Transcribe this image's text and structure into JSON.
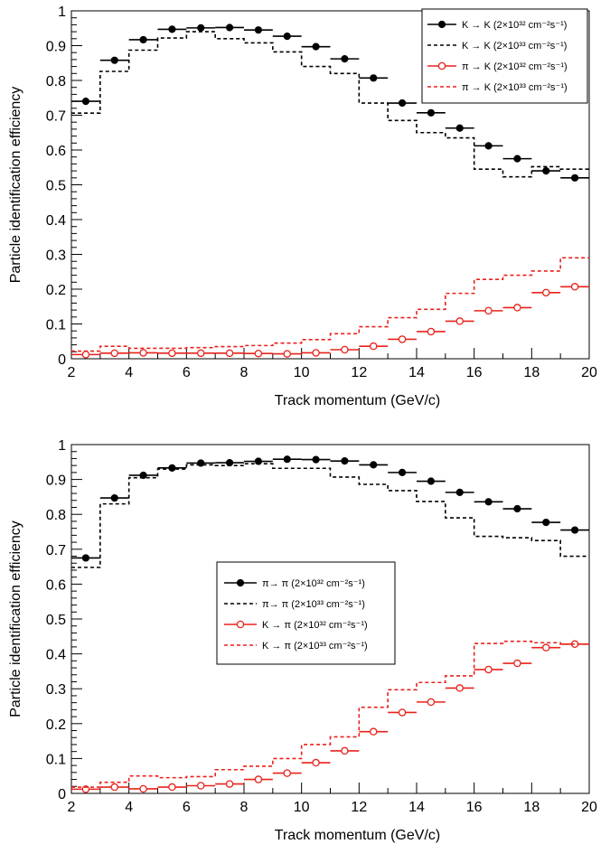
{
  "chart_data": [
    {
      "type": "line",
      "panel": "top",
      "xlabel": "Track momentum (GeV/c)",
      "ylabel": "Particle identification efficiency",
      "xlim": [
        2,
        20
      ],
      "ylim": [
        0,
        1
      ],
      "x_bin_edges": [
        2,
        3,
        4,
        5,
        6,
        7,
        8,
        9,
        10,
        11,
        12,
        13,
        14,
        15,
        16,
        17,
        18,
        19,
        20
      ],
      "x_bin_centers": [
        2.5,
        3.5,
        4.5,
        5.5,
        6.5,
        7.5,
        8.5,
        9.5,
        10.5,
        11.5,
        12.5,
        13.5,
        14.5,
        15.5,
        16.5,
        17.5,
        18.5,
        19.5
      ],
      "x_ticks": [
        2,
        4,
        6,
        8,
        10,
        12,
        14,
        16,
        18,
        20
      ],
      "y_ticks": [
        0,
        0.1,
        0.2,
        0.3,
        0.4,
        0.5,
        0.6,
        0.7,
        0.8,
        0.9,
        1
      ],
      "legend_position": "top-right",
      "series": [
        {
          "name": "K → K (2×10³² cm⁻²s⁻¹)",
          "style": "marker-filled",
          "color": "#000000",
          "values": [
            0.74,
            0.858,
            0.917,
            0.947,
            0.951,
            0.952,
            0.945,
            0.927,
            0.897,
            0.862,
            0.807,
            0.735,
            0.707,
            0.663,
            0.612,
            0.575,
            0.54,
            0.52
          ]
        },
        {
          "name": "K → K (2×10³³ cm⁻²s⁻¹)",
          "style": "step-dashed",
          "color": "#000000",
          "values": [
            0.706,
            0.826,
            0.887,
            0.922,
            0.94,
            0.92,
            0.908,
            0.882,
            0.84,
            0.82,
            0.735,
            0.685,
            0.65,
            0.635,
            0.545,
            0.523,
            0.552,
            0.545
          ]
        },
        {
          "name": "π → K (2×10³² cm⁻²s⁻¹)",
          "style": "marker-open",
          "color": "#e8221c",
          "values": [
            0.012,
            0.016,
            0.017,
            0.016,
            0.016,
            0.016,
            0.015,
            0.014,
            0.017,
            0.026,
            0.036,
            0.056,
            0.078,
            0.108,
            0.138,
            0.147,
            0.19,
            0.207
          ]
        },
        {
          "name": "π → K (2×10³³ cm⁻²s⁻¹)",
          "style": "step-dashed",
          "color": "#e8221c",
          "values": [
            0.022,
            0.036,
            0.03,
            0.03,
            0.032,
            0.035,
            0.038,
            0.045,
            0.055,
            0.072,
            0.092,
            0.118,
            0.142,
            0.188,
            0.228,
            0.24,
            0.252,
            0.29
          ]
        }
      ]
    },
    {
      "type": "line",
      "panel": "bottom",
      "xlabel": "Track momentum (GeV/c)",
      "ylabel": "Particle identification efficiency",
      "xlim": [
        2,
        20
      ],
      "ylim": [
        0,
        1
      ],
      "x_bin_edges": [
        2,
        3,
        4,
        5,
        6,
        7,
        8,
        9,
        10,
        11,
        12,
        13,
        14,
        15,
        16,
        17,
        18,
        19,
        20
      ],
      "x_bin_centers": [
        2.5,
        3.5,
        4.5,
        5.5,
        6.5,
        7.5,
        8.5,
        9.5,
        10.5,
        11.5,
        12.5,
        13.5,
        14.5,
        15.5,
        16.5,
        17.5,
        18.5,
        19.5
      ],
      "x_ticks": [
        2,
        4,
        6,
        8,
        10,
        12,
        14,
        16,
        18,
        20
      ],
      "y_ticks": [
        0,
        0.1,
        0.2,
        0.3,
        0.4,
        0.5,
        0.6,
        0.7,
        0.8,
        0.9,
        1
      ],
      "legend_position": "center-left",
      "series": [
        {
          "name": "π→ π (2×10³² cm⁻²s⁻¹)",
          "style": "marker-filled",
          "color": "#000000",
          "values": [
            0.675,
            0.847,
            0.912,
            0.933,
            0.947,
            0.948,
            0.952,
            0.958,
            0.957,
            0.953,
            0.942,
            0.92,
            0.895,
            0.863,
            0.836,
            0.816,
            0.777,
            0.755
          ]
        },
        {
          "name": "π→ π (2×10³³ cm⁻²s⁻¹)",
          "style": "step-dashed",
          "color": "#000000",
          "values": [
            0.648,
            0.83,
            0.905,
            0.93,
            0.942,
            0.94,
            0.945,
            0.932,
            0.932,
            0.907,
            0.886,
            0.868,
            0.837,
            0.79,
            0.737,
            0.733,
            0.725,
            0.68
          ]
        },
        {
          "name": "K → π (2×10³² cm⁻²s⁻¹)",
          "style": "marker-open",
          "color": "#e8221c",
          "values": [
            0.012,
            0.018,
            0.013,
            0.018,
            0.022,
            0.027,
            0.04,
            0.058,
            0.088,
            0.122,
            0.177,
            0.232,
            0.262,
            0.302,
            0.355,
            0.373,
            0.418,
            0.428
          ]
        },
        {
          "name": "K → π (2×10³³ cm⁻²s⁻¹)",
          "style": "step-dashed",
          "color": "#e8221c",
          "values": [
            0.018,
            0.032,
            0.05,
            0.045,
            0.048,
            0.068,
            0.078,
            0.1,
            0.14,
            0.162,
            0.247,
            0.297,
            0.318,
            0.337,
            0.43,
            0.436,
            0.432,
            0.428
          ]
        }
      ]
    }
  ]
}
